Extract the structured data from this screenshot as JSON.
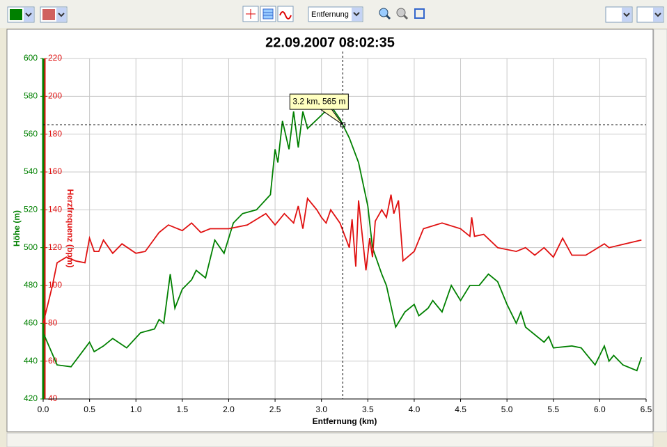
{
  "toolbar": {
    "x_dropdown": "Entfernung"
  },
  "chart_data": {
    "type": "line",
    "title": "22.09.2007 08:02:35",
    "x_label": "Entfernung (km)",
    "y_label": "Höhe (m)",
    "y2_label": "Herzfrequenz (bpm)",
    "annotation": "3.2 km, 565 m",
    "cursor": {
      "x": 3.23,
      "y": 565
    },
    "xlim": [
      0,
      6.5
    ],
    "xticks": [
      {
        "value": 0,
        "label": "0.0"
      },
      0.5,
      {
        "value": 1,
        "label": "1.0"
      },
      1.5,
      {
        "value": 2,
        "label": "2.0"
      },
      2.5,
      {
        "value": 3,
        "label": "3.0"
      },
      3.5,
      {
        "value": 4,
        "label": "4.0"
      },
      4.5,
      {
        "value": 5,
        "label": "5.0"
      },
      5.5,
      {
        "value": 6,
        "label": "6.0"
      },
      6.5
    ],
    "ylim": [
      420,
      600
    ],
    "yticks": [
      420,
      440,
      460,
      480,
      500,
      520,
      540,
      560,
      580,
      600
    ],
    "y2lim": [
      40,
      220
    ],
    "y2ticks": [
      40,
      60,
      80,
      100,
      120,
      140,
      160,
      180,
      200,
      220
    ],
    "grid": true,
    "series": [
      {
        "name": "Höhe (m)",
        "color": "#008000",
        "axis": "y",
        "x": [
          0,
          0.15,
          0.3,
          0.5,
          0.55,
          0.65,
          0.75,
          0.9,
          1.05,
          1.2,
          1.25,
          1.3,
          1.37,
          1.42,
          1.5,
          1.6,
          1.65,
          1.75,
          1.85,
          1.95,
          2.05,
          2.15,
          2.3,
          2.45,
          2.5,
          2.53,
          2.58,
          2.65,
          2.7,
          2.75,
          2.8,
          2.85,
          3.0,
          3.1,
          3.2,
          3.3,
          3.4,
          3.5,
          3.55,
          3.65,
          3.7,
          3.8,
          3.9,
          4.0,
          4.05,
          4.15,
          4.2,
          4.3,
          4.4,
          4.5,
          4.6,
          4.7,
          4.8,
          4.9,
          5.0,
          5.1,
          5.15,
          5.2,
          5.4,
          5.45,
          5.5,
          5.7,
          5.8,
          5.95,
          6.05,
          6.1,
          6.15,
          6.25,
          6.4,
          6.45
        ],
        "values": [
          455,
          438,
          437,
          450,
          445,
          448,
          452,
          447,
          455,
          457,
          462,
          460,
          486,
          468,
          478,
          483,
          488,
          484,
          504,
          497,
          513,
          518,
          520,
          528,
          552,
          545,
          567,
          552,
          572,
          553,
          572,
          563,
          570,
          575,
          568,
          558,
          545,
          522,
          500,
          486,
          480,
          458,
          466,
          470,
          464,
          468,
          472,
          466,
          480,
          472,
          480,
          480,
          486,
          482,
          470,
          460,
          466,
          458,
          450,
          453,
          447,
          448,
          447,
          438,
          448,
          440,
          443,
          438,
          435,
          442
        ]
      },
      {
        "name": "Herzfrequenz (bpm)",
        "color": "#e01010",
        "axis": "y2",
        "x": [
          0,
          0.05,
          0.1,
          0.15,
          0.25,
          0.35,
          0.45,
          0.5,
          0.55,
          0.6,
          0.65,
          0.75,
          0.85,
          1.0,
          1.1,
          1.25,
          1.35,
          1.5,
          1.6,
          1.7,
          1.8,
          2.0,
          2.2,
          2.4,
          2.45,
          2.5,
          2.6,
          2.7,
          2.75,
          2.8,
          2.85,
          2.95,
          3.0,
          3.05,
          3.1,
          3.2,
          3.3,
          3.33,
          3.37,
          3.4,
          3.48,
          3.52,
          3.55,
          3.58,
          3.65,
          3.7,
          3.75,
          3.78,
          3.83,
          3.88,
          4.0,
          4.1,
          4.3,
          4.5,
          4.6,
          4.62,
          4.65,
          4.75,
          4.9,
          5.1,
          5.2,
          5.3,
          5.4,
          5.5,
          5.6,
          5.7,
          5.85,
          6.05,
          6.1,
          6.45
        ],
        "values": [
          80,
          90,
          100,
          112,
          115,
          113,
          112,
          125,
          118,
          118,
          124,
          117,
          122,
          117,
          118,
          128,
          132,
          129,
          133,
          128,
          130,
          130,
          132,
          138,
          135,
          132,
          138,
          133,
          142,
          130,
          146,
          140,
          136,
          133,
          140,
          133,
          120,
          135,
          110,
          145,
          108,
          125,
          115,
          134,
          140,
          136,
          148,
          138,
          145,
          113,
          118,
          130,
          133,
          130,
          126,
          136,
          126,
          127,
          120,
          118,
          120,
          116,
          120,
          115,
          125,
          116,
          116,
          122,
          120,
          124
        ]
      }
    ]
  }
}
